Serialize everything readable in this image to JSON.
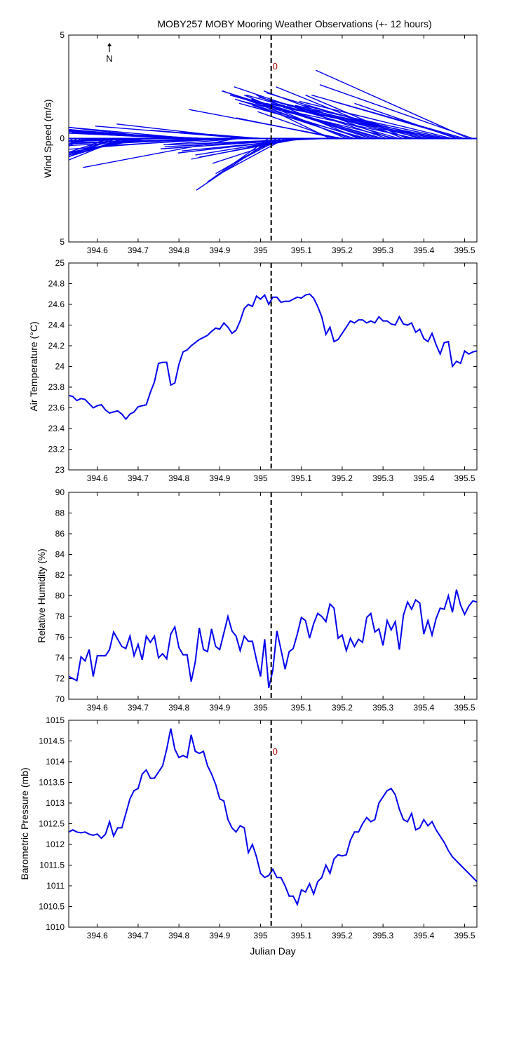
{
  "title": "MOBY257 MOBY Mooring Weather Observations (+- 12 hours)",
  "chart_data": [
    {
      "type": "quiver",
      "ylabel": "Wind Speed (m/s)",
      "xlim": [
        394.53,
        395.53
      ],
      "ylim": [
        -5,
        5
      ],
      "ytick_labels": [
        "5",
        "0",
        "5"
      ],
      "xticks": [
        "394.6",
        "394.7",
        "394.8",
        "394.9",
        "395",
        "395.1",
        "395.2",
        "395.3",
        "395.4",
        "395.5"
      ],
      "north_label": "N",
      "marker_x": 395.026,
      "marker_label": "0",
      "vectors": [
        [
          394.53,
          -0.1,
          -2.4
        ],
        [
          394.54,
          -0.1,
          -2.0
        ],
        [
          394.55,
          -0.1,
          -1.8
        ],
        [
          394.56,
          -0.1,
          -1.6
        ],
        [
          394.57,
          -0.15,
          -1.4
        ],
        [
          394.58,
          -0.2,
          -1.4
        ],
        [
          394.59,
          -0.3,
          -1.5
        ],
        [
          394.6,
          -0.3,
          -1.3
        ],
        [
          394.61,
          -0.4,
          -1.5
        ],
        [
          394.62,
          -0.25,
          -3.1
        ],
        [
          394.63,
          -0.3,
          -2.5
        ],
        [
          394.64,
          -0.3,
          -2.7
        ],
        [
          394.65,
          -0.35,
          -2.9
        ],
        [
          394.66,
          -0.3,
          -3.0
        ],
        [
          394.67,
          -0.35,
          -2.7
        ],
        [
          394.68,
          -0.4,
          -2.9
        ],
        [
          394.69,
          -0.5,
          -2.8
        ],
        [
          394.7,
          -0.5,
          -2.9
        ],
        [
          394.71,
          -0.6,
          -2.8
        ],
        [
          394.72,
          -0.5,
          -2.3
        ],
        [
          394.73,
          -0.9,
          -0.6
        ],
        [
          394.74,
          -0.8,
          -0.5
        ],
        [
          394.75,
          -0.5,
          -0.4
        ],
        [
          394.76,
          -0.4,
          -0.3
        ],
        [
          394.77,
          -0.5,
          1.4
        ],
        [
          394.78,
          -0.5,
          1.1
        ],
        [
          394.79,
          -0.45,
          0.9
        ],
        [
          394.8,
          -0.55,
          0.7
        ],
        [
          394.81,
          -0.35,
          0.6
        ],
        [
          394.82,
          -0.45,
          0.5
        ],
        [
          394.83,
          -0.4,
          0.9
        ],
        [
          394.84,
          -0.35,
          0.4
        ],
        [
          394.85,
          -0.25,
          0.3
        ],
        [
          394.86,
          -0.3,
          0.4
        ],
        [
          394.87,
          -0.3,
          0.3
        ],
        [
          394.88,
          -0.7,
          -1.3
        ],
        [
          394.89,
          -0.6,
          -0.7
        ],
        [
          394.9,
          -0.35,
          -0.3
        ],
        [
          394.91,
          -0.3,
          -0.2
        ],
        [
          394.92,
          -0.2,
          -0.15
        ],
        [
          394.93,
          -0.25,
          -0.35
        ],
        [
          394.94,
          -0.3,
          -1.4
        ],
        [
          394.95,
          -0.15,
          -0.3
        ],
        [
          394.96,
          -0.25,
          0.7
        ],
        [
          394.97,
          -0.3,
          0.6
        ],
        [
          394.98,
          -0.2,
          0.4
        ],
        [
          394.99,
          -0.15,
          0.3
        ],
        [
          395.0,
          -0.1,
          0.2
        ],
        [
          395.01,
          -0.08,
          0.1
        ],
        [
          395.02,
          -0.12,
          -2.1
        ],
        [
          395.03,
          -0.15,
          -2.5
        ],
        [
          395.04,
          -0.12,
          -1.7
        ],
        [
          395.05,
          -0.1,
          -1.3
        ],
        [
          395.06,
          -0.12,
          -1.6
        ],
        [
          395.07,
          -0.15,
          -1.2
        ],
        [
          395.08,
          -0.2,
          -1.0
        ],
        [
          395.09,
          -0.2,
          -0.8
        ],
        [
          395.1,
          -0.2,
          -0.9
        ],
        [
          395.11,
          -0.25,
          -0.7
        ],
        [
          395.12,
          -0.25,
          -0.6
        ],
        [
          395.13,
          -0.3,
          -0.5
        ],
        [
          395.14,
          -0.3,
          -0.4
        ],
        [
          395.15,
          -0.3,
          -0.3
        ],
        [
          395.16,
          -0.2,
          -0.2
        ],
        [
          395.17,
          -0.1,
          1.2
        ],
        [
          395.18,
          -0.15,
          1.3
        ],
        [
          395.19,
          -0.2,
          1.0
        ],
        [
          395.2,
          -0.3,
          1.4
        ],
        [
          395.21,
          -0.2,
          2.1
        ],
        [
          395.22,
          -0.25,
          2.3
        ],
        [
          395.23,
          -0.2,
          1.6
        ],
        [
          395.24,
          -0.2,
          2.1
        ],
        [
          395.25,
          -0.25,
          1.9
        ],
        [
          395.26,
          -0.25,
          1.7
        ],
        [
          395.27,
          -0.2,
          1.6
        ],
        [
          395.28,
          -0.3,
          2.3
        ],
        [
          395.29,
          -0.25,
          1.9
        ],
        [
          395.3,
          -0.3,
          2.1
        ],
        [
          395.31,
          -0.3,
          2.5
        ],
        [
          395.32,
          -0.25,
          2.3
        ],
        [
          395.33,
          -0.3,
          1.8
        ],
        [
          395.34,
          -0.3,
          2.1
        ],
        [
          395.35,
          -0.25,
          2.5
        ],
        [
          395.36,
          -0.2,
          2.1
        ],
        [
          395.37,
          -0.3,
          2.0
        ],
        [
          395.38,
          -0.3,
          1.6
        ],
        [
          395.39,
          -0.3,
          2.2
        ],
        [
          395.4,
          -0.3,
          1.7
        ],
        [
          395.41,
          -0.3,
          1.8
        ],
        [
          395.42,
          -0.25,
          1.6
        ],
        [
          395.43,
          -0.3,
          1.5
        ],
        [
          395.44,
          -0.3,
          1.6
        ],
        [
          395.45,
          -0.35,
          1.7
        ],
        [
          395.46,
          -0.3,
          1.6
        ],
        [
          395.47,
          -0.3,
          1.8
        ],
        [
          395.48,
          -0.2,
          1.7
        ],
        [
          395.49,
          -0.25,
          1.8
        ],
        [
          395.5,
          -0.3,
          2.1
        ],
        [
          395.51,
          -0.3,
          3.3
        ],
        [
          395.52,
          -0.3,
          2.6
        ]
      ]
    },
    {
      "type": "line",
      "ylabel": "Air Temperature (°C)",
      "xlim": [
        394.53,
        395.53
      ],
      "ylim": [
        23,
        25
      ],
      "yticks": [
        23,
        23.2,
        23.4,
        23.6,
        23.8,
        24,
        24.2,
        24.4,
        24.6,
        24.8,
        25
      ],
      "xticks": [
        "394.6",
        "394.7",
        "394.8",
        "394.9",
        "395",
        "395.1",
        "395.2",
        "395.3",
        "395.4",
        "395.5"
      ],
      "marker_x": 395.026,
      "x": [
        394.53,
        394.54,
        394.55,
        394.56,
        394.57,
        394.58,
        394.59,
        394.6,
        394.61,
        394.62,
        394.63,
        394.64,
        394.65,
        394.66,
        394.67,
        394.68,
        394.69,
        394.7,
        394.71,
        394.72,
        394.73,
        394.74,
        394.75,
        394.76,
        394.77,
        394.78,
        394.79,
        394.8,
        394.81,
        394.82,
        394.83,
        394.84,
        394.85,
        394.86,
        394.87,
        394.88,
        394.89,
        394.9,
        394.91,
        394.92,
        394.93,
        394.94,
        394.95,
        394.96,
        394.97,
        394.98,
        394.99,
        395.0,
        395.01,
        395.02,
        395.03,
        395.04,
        395.05,
        395.06,
        395.07,
        395.08,
        395.09,
        395.1,
        395.11,
        395.12,
        395.13,
        395.14,
        395.15,
        395.16,
        395.17,
        395.18,
        395.19,
        395.2,
        395.21,
        395.22,
        395.23,
        395.24,
        395.25,
        395.26,
        395.27,
        395.28,
        395.29,
        395.3,
        395.31,
        395.32,
        395.33,
        395.34,
        395.35,
        395.36,
        395.37,
        395.38,
        395.39,
        395.4,
        395.41,
        395.42,
        395.43,
        395.44,
        395.45,
        395.46,
        395.47,
        395.48,
        395.49,
        395.5,
        395.51,
        395.52,
        395.53
      ],
      "y": [
        23.72,
        23.71,
        23.67,
        23.69,
        23.68,
        23.64,
        23.6,
        23.62,
        23.63,
        23.58,
        23.55,
        23.56,
        23.57,
        23.54,
        23.49,
        23.54,
        23.56,
        23.61,
        23.62,
        23.63,
        23.75,
        23.85,
        24.03,
        24.04,
        24.04,
        23.82,
        23.84,
        24.02,
        24.14,
        24.16,
        24.2,
        24.23,
        24.26,
        24.28,
        24.3,
        24.34,
        24.37,
        24.36,
        24.42,
        24.38,
        24.32,
        24.35,
        24.44,
        24.56,
        24.6,
        24.58,
        24.68,
        24.65,
        24.69,
        24.6,
        24.67,
        24.67,
        24.62,
        24.63,
        24.63,
        24.65,
        24.67,
        24.66,
        24.69,
        24.7,
        24.66,
        24.58,
        24.48,
        24.31,
        24.38,
        24.24,
        24.26,
        24.32,
        24.38,
        24.44,
        24.42,
        24.45,
        24.45,
        24.42,
        24.44,
        24.42,
        24.48,
        24.44,
        24.44,
        24.41,
        24.4,
        24.48,
        24.41,
        24.4,
        24.42,
        24.33,
        24.36,
        24.27,
        24.24,
        24.32,
        24.21,
        24.12,
        24.23,
        24.24,
        24.0,
        24.05,
        24.03,
        24.15,
        24.12,
        24.14,
        24.15
      ]
    },
    {
      "type": "line",
      "ylabel": "Relative Humidity (%)",
      "xlim": [
        394.53,
        395.53
      ],
      "ylim": [
        70,
        90
      ],
      "yticks": [
        70,
        72,
        74,
        76,
        78,
        80,
        82,
        84,
        86,
        88,
        90
      ],
      "xticks": [
        "394.6",
        "394.7",
        "394.8",
        "394.9",
        "395",
        "395.1",
        "395.2",
        "395.3",
        "395.4",
        "395.5"
      ],
      "marker_x": 395.026,
      "x": [
        394.53,
        394.54,
        394.55,
        394.56,
        394.57,
        394.58,
        394.59,
        394.6,
        394.61,
        394.62,
        394.63,
        394.64,
        394.65,
        394.66,
        394.67,
        394.68,
        394.69,
        394.7,
        394.71,
        394.72,
        394.73,
        394.74,
        394.75,
        394.76,
        394.77,
        394.78,
        394.79,
        394.8,
        394.81,
        394.82,
        394.83,
        394.84,
        394.85,
        394.86,
        394.87,
        394.88,
        394.89,
        394.9,
        394.91,
        394.92,
        394.93,
        394.94,
        394.95,
        394.96,
        394.97,
        394.98,
        394.99,
        395.0,
        395.01,
        395.02,
        395.03,
        395.04,
        395.05,
        395.06,
        395.07,
        395.08,
        395.09,
        395.1,
        395.11,
        395.12,
        395.13,
        395.14,
        395.15,
        395.16,
        395.17,
        395.18,
        395.19,
        395.2,
        395.21,
        395.22,
        395.23,
        395.24,
        395.25,
        395.26,
        395.27,
        395.28,
        395.29,
        395.3,
        395.31,
        395.32,
        395.33,
        395.34,
        395.35,
        395.36,
        395.37,
        395.38,
        395.39,
        395.4,
        395.41,
        395.42,
        395.43,
        395.44,
        395.45,
        395.46,
        395.47,
        395.48,
        395.49,
        395.5,
        395.51,
        395.52,
        395.53
      ],
      "y": [
        72.2,
        72.0,
        71.8,
        74.1,
        73.7,
        74.8,
        72.2,
        74.2,
        74.2,
        74.2,
        74.8,
        76.5,
        75.8,
        75.1,
        74.9,
        76.1,
        74.2,
        75.3,
        73.8,
        76.1,
        75.5,
        76.1,
        74.0,
        74.4,
        73.9,
        76.3,
        77.0,
        75.0,
        74.3,
        74.3,
        71.7,
        73.6,
        76.9,
        74.8,
        74.6,
        76.8,
        75.1,
        74.8,
        76.4,
        78.0,
        76.6,
        76.1,
        74.7,
        76.1,
        75.6,
        75.6,
        73.8,
        72.2,
        75.8,
        71.1,
        72.8,
        76.6,
        74.8,
        72.9,
        74.6,
        74.9,
        76.3,
        77.9,
        77.6,
        75.9,
        77.3,
        78.3,
        78.0,
        77.5,
        79.2,
        78.8,
        75.9,
        76.2,
        74.7,
        75.9,
        75.1,
        75.8,
        75.5,
        77.9,
        78.3,
        76.5,
        76.8,
        75.2,
        77.6,
        76.7,
        77.5,
        74.8,
        78.1,
        79.4,
        78.7,
        79.6,
        79.3,
        76.3,
        77.6,
        76.2,
        77.8,
        78.8,
        78.7,
        80.0,
        78.4,
        80.6,
        79.1,
        78.2,
        79.0,
        79.5,
        79.4
      ]
    },
    {
      "type": "line",
      "ylabel": "Barometric Pressure (mb)",
      "xlabel": "Julian Day",
      "xlim": [
        394.53,
        395.53
      ],
      "ylim": [
        1010,
        1015
      ],
      "yticks": [
        1010,
        1010.5,
        1011,
        1011.5,
        1012,
        1012.5,
        1013,
        1013.5,
        1014,
        1014.5,
        1015
      ],
      "xticks": [
        "394.6",
        "394.7",
        "394.8",
        "394.9",
        "395",
        "395.1",
        "395.2",
        "395.3",
        "395.4",
        "395.5"
      ],
      "marker_x": 395.026,
      "marker_label": "0",
      "x": [
        394.53,
        394.54,
        394.55,
        394.56,
        394.57,
        394.58,
        394.59,
        394.6,
        394.61,
        394.62,
        394.63,
        394.64,
        394.65,
        394.66,
        394.67,
        394.68,
        394.69,
        394.7,
        394.71,
        394.72,
        394.73,
        394.74,
        394.75,
        394.76,
        394.77,
        394.78,
        394.79,
        394.8,
        394.81,
        394.82,
        394.83,
        394.84,
        394.85,
        394.86,
        394.87,
        394.88,
        394.89,
        394.9,
        394.91,
        394.92,
        394.93,
        394.94,
        394.95,
        394.96,
        394.97,
        394.98,
        394.99,
        395.0,
        395.01,
        395.02,
        395.03,
        395.04,
        395.05,
        395.06,
        395.07,
        395.08,
        395.09,
        395.1,
        395.11,
        395.12,
        395.13,
        395.14,
        395.15,
        395.16,
        395.17,
        395.18,
        395.19,
        395.2,
        395.21,
        395.22,
        395.23,
        395.24,
        395.25,
        395.26,
        395.27,
        395.28,
        395.29,
        395.3,
        395.31,
        395.32,
        395.33,
        395.34,
        395.35,
        395.36,
        395.37,
        395.38,
        395.39,
        395.4,
        395.41,
        395.42,
        395.43,
        395.44,
        395.45,
        395.46,
        395.47,
        395.48,
        395.49,
        395.5,
        395.51,
        395.52,
        395.53
      ],
      "y": [
        1012.3,
        1012.35,
        1012.3,
        1012.28,
        1012.3,
        1012.25,
        1012.22,
        1012.25,
        1012.15,
        1012.25,
        1012.55,
        1012.2,
        1012.4,
        1012.4,
        1012.75,
        1013.1,
        1013.3,
        1013.35,
        1013.7,
        1013.8,
        1013.6,
        1013.6,
        1013.75,
        1013.9,
        1014.3,
        1014.8,
        1014.3,
        1014.1,
        1014.15,
        1014.1,
        1014.65,
        1014.25,
        1014.2,
        1014.25,
        1013.9,
        1013.7,
        1013.45,
        1013.1,
        1013.05,
        1012.6,
        1012.4,
        1012.3,
        1012.45,
        1012.4,
        1011.8,
        1012.0,
        1011.7,
        1011.3,
        1011.2,
        1011.25,
        1011.4,
        1011.2,
        1011.2,
        1011.0,
        1010.75,
        1010.75,
        1010.55,
        1010.9,
        1010.85,
        1011.05,
        1010.8,
        1011.1,
        1011.2,
        1011.5,
        1011.3,
        1011.65,
        1011.75,
        1011.72,
        1011.75,
        1012.1,
        1012.3,
        1012.3,
        1012.5,
        1012.65,
        1012.55,
        1012.6,
        1013.0,
        1013.15,
        1013.3,
        1013.35,
        1013.2,
        1012.85,
        1012.6,
        1012.55,
        1012.75,
        1012.35,
        1012.4,
        1012.6,
        1012.45,
        1012.55,
        1012.35,
        1012.2,
        1012.05,
        1011.85,
        1011.7,
        1011.6,
        1011.5,
        1011.4,
        1011.3,
        1011.2,
        1011.1
      ]
    }
  ]
}
